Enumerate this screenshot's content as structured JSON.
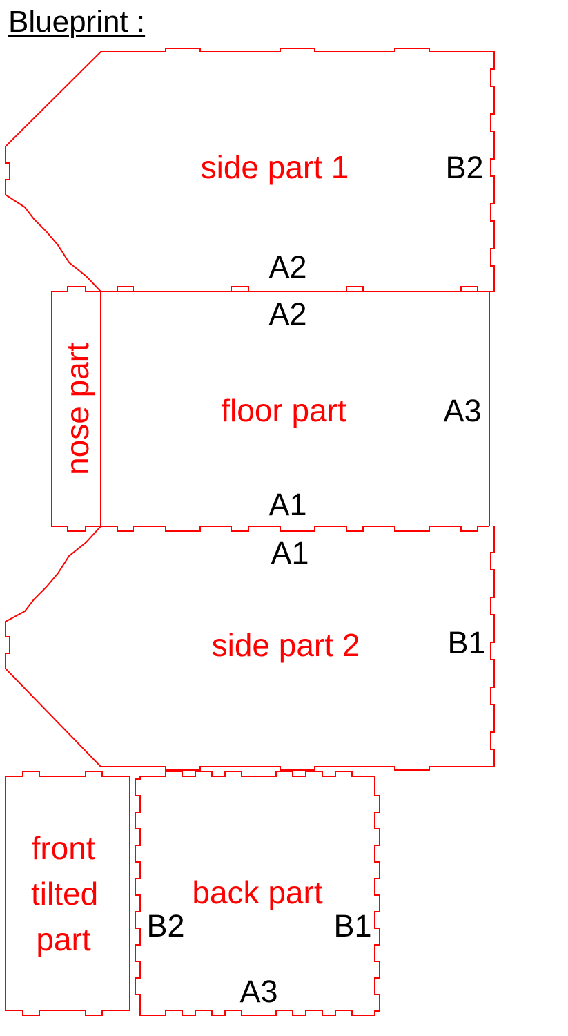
{
  "title": "Blueprint :",
  "colors": {
    "outline": "#ff0000",
    "part_label": "#ff0000",
    "edge_label": "#000000"
  },
  "parts": {
    "side_part_1": "side part 1",
    "floor_part": "floor part",
    "nose_part": "nose part",
    "side_part_2": "side part 2",
    "front_tilted_part": [
      "front",
      "tilted",
      "part"
    ],
    "back_part": "back part"
  },
  "edge_labels": {
    "side1_right": "B2",
    "side1_bottom": "A2",
    "floor_top": "A2",
    "floor_right": "A3",
    "floor_bottom": "A1",
    "side2_top": "A1",
    "side2_right": "B1",
    "back_left": "B2",
    "back_right": "B1",
    "back_bottom": "A3"
  }
}
